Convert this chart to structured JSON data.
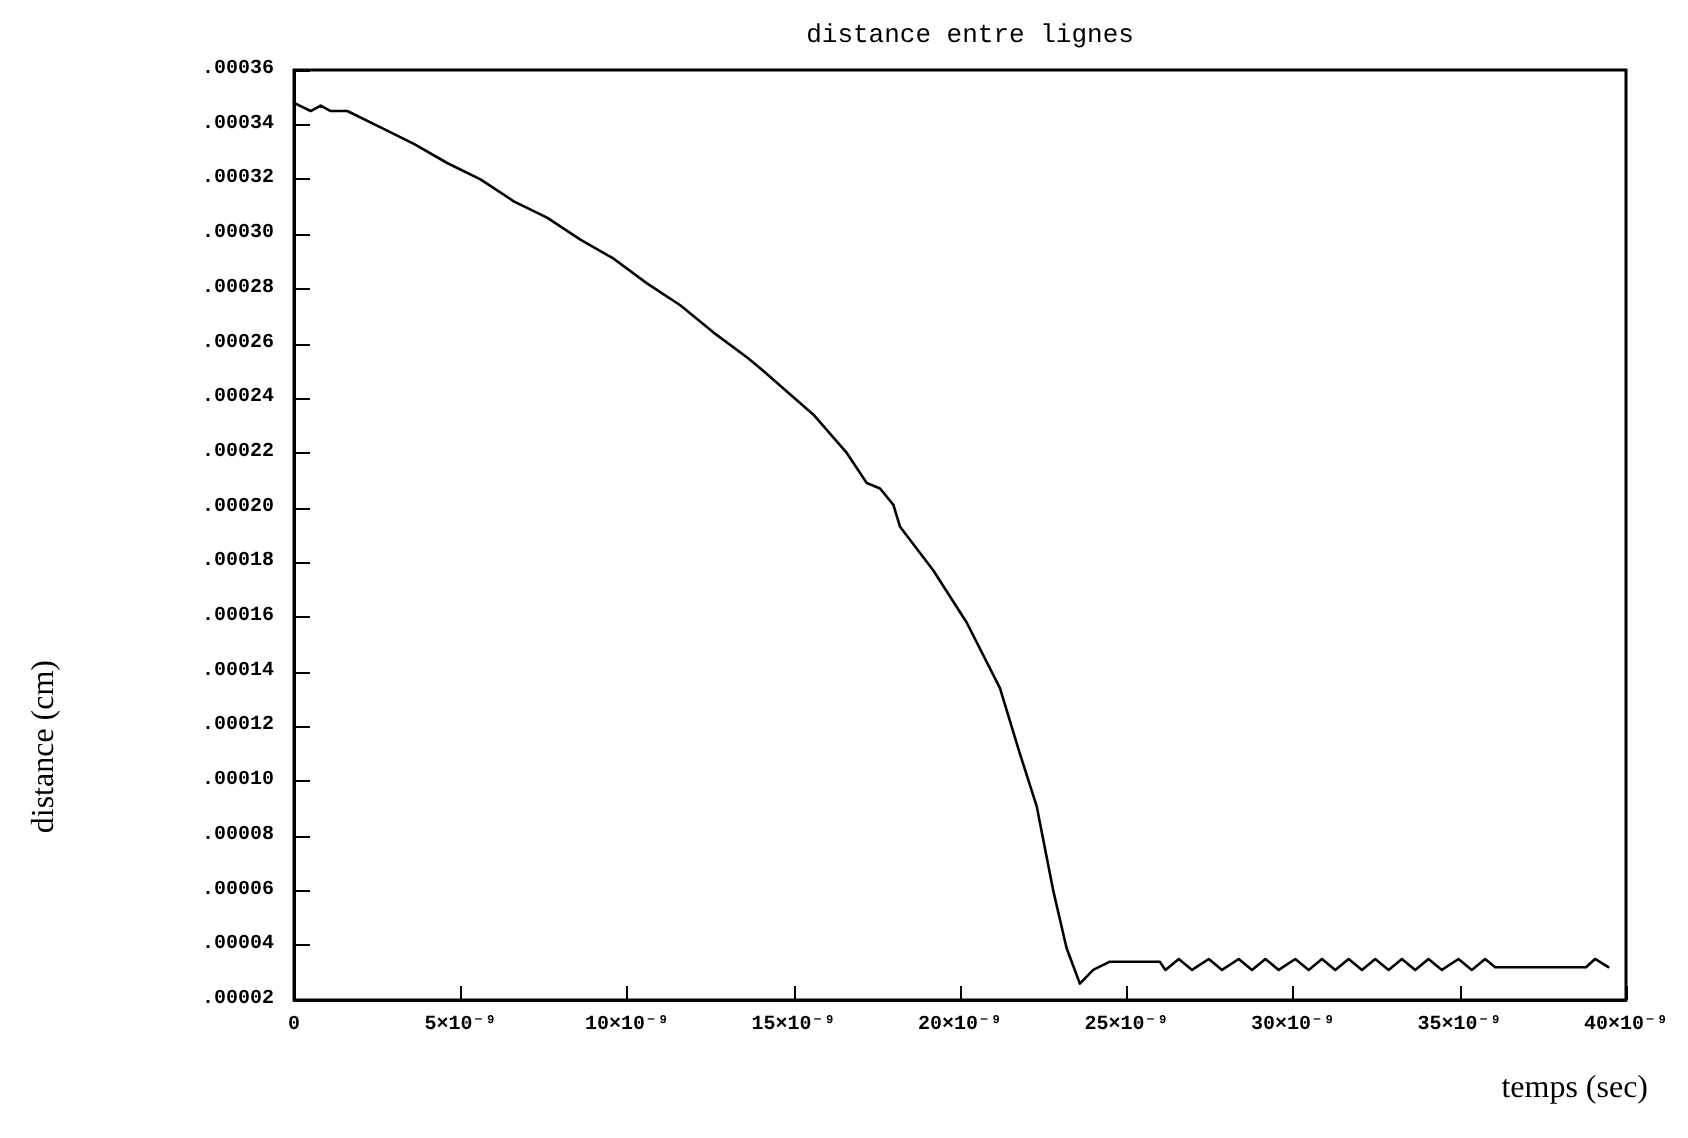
{
  "chart_data": {
    "type": "line",
    "title": "distance entre lignes",
    "xlabel": "temps (sec)",
    "ylabel": "distance (cm)",
    "x": [
      0,
      5e-10,
      8e-10,
      1.1e-09,
      1.6e-09,
      2.6e-09,
      3.6e-09,
      4.6e-09,
      5.6e-09,
      6.6e-09,
      7.6e-09,
      8.6e-09,
      9.6e-09,
      1.06e-08,
      1.16e-08,
      1.26e-08,
      1.36e-08,
      1.4e-08,
      1.56e-08,
      1.66e-08,
      1.72e-08,
      1.76e-08,
      1.8e-08,
      1.82e-08,
      1.92e-08,
      2.02e-08,
      2.12e-08,
      2.18e-08,
      2.23e-08,
      2.28e-08,
      2.32e-08,
      2.36e-08,
      2.4e-08,
      2.45e-08,
      2.6e-08,
      2.617e-08,
      2.657e-08,
      2.697e-08,
      2.747e-08,
      2.787e-08,
      2.837e-08,
      2.877e-08,
      2.917e-08,
      2.957e-08,
      3.007e-08,
      3.047e-08,
      3.087e-08,
      3.127e-08,
      3.167e-08,
      3.207e-08,
      3.247e-08,
      3.287e-08,
      3.327e-08,
      3.367e-08,
      3.407e-08,
      3.447e-08,
      3.497e-08,
      3.537e-08,
      3.577e-08,
      3.607e-08,
      3.88e-08,
      3.907e-08,
      3.947e-08
    ],
    "series": [
      {
        "color": "#000000",
        "values": [
          0.000348,
          0.000345,
          0.000347,
          0.000345,
          0.000345,
          0.000339,
          0.000333,
          0.000326,
          0.00032,
          0.000312,
          0.000306,
          0.000298,
          0.000291,
          0.000282,
          0.000274,
          0.000264,
          0.000255,
          0.000251,
          0.000234,
          0.00022,
          0.000209,
          0.000207,
          0.000201,
          0.000193,
          0.000177,
          0.000158,
          0.000134,
          0.00011,
          9.1e-05,
          6e-05,
          3.9e-05,
          2.6e-05,
          3.1e-05,
          3.4e-05,
          3.4e-05,
          3.1e-05,
          3.5e-05,
          3.1e-05,
          3.5e-05,
          3.1e-05,
          3.5e-05,
          3.1e-05,
          3.5e-05,
          3.1e-05,
          3.5e-05,
          3.1e-05,
          3.5e-05,
          3.1e-05,
          3.5e-05,
          3.1e-05,
          3.5e-05,
          3.1e-05,
          3.5e-05,
          3.1e-05,
          3.5e-05,
          3.1e-05,
          3.5e-05,
          3.1e-05,
          3.5e-05,
          3.2e-05,
          3.2e-05,
          3.5e-05,
          3.2e-05
        ]
      }
    ],
    "xlim": [
      0,
      4e-08
    ],
    "xticks": [
      0,
      {
        "value": 5e-09,
        "label": "5×10⁻⁹"
      },
      {
        "value": 1e-08,
        "label": "10×10⁻⁹"
      },
      {
        "value": 1.5e-08,
        "label": "15×10⁻⁹"
      },
      {
        "value": 2e-08,
        "label": "20×10⁻⁹"
      },
      {
        "value": 2.5e-08,
        "label": "25×10⁻⁹"
      },
      {
        "value": 3e-08,
        "label": "30×10⁻⁹"
      },
      {
        "value": 3.5e-08,
        "label": "35×10⁻⁹"
      },
      {
        "value": 4e-08,
        "label": "40×10⁻⁹"
      }
    ],
    "ylim": [
      2e-05,
      0.00036
    ],
    "yticks": [
      {
        "value": 2e-05,
        "label": ".00002"
      },
      {
        "value": 4e-05,
        "label": ".00004"
      },
      {
        "value": 6e-05,
        "label": ".00006"
      },
      {
        "value": 8e-05,
        "label": ".00008"
      },
      {
        "value": 0.0001,
        "label": ".00010"
      },
      {
        "value": 0.00012,
        "label": ".00012"
      },
      {
        "value": 0.00014,
        "label": ".00014"
      },
      {
        "value": 0.00016,
        "label": ".00016"
      },
      {
        "value": 0.00018,
        "label": ".00018"
      },
      {
        "value": 0.0002,
        "label": ".00020"
      },
      {
        "value": 0.00022,
        "label": ".00022"
      },
      {
        "value": 0.00024,
        "label": ".00024"
      },
      {
        "value": 0.00026,
        "label": ".00026"
      },
      {
        "value": 0.00028,
        "label": ".00028"
      },
      {
        "value": 0.0003,
        "label": ".00030"
      },
      {
        "value": 0.00032,
        "label": ".00032"
      },
      {
        "value": 0.00034,
        "label": ".00034"
      },
      {
        "value": 0.00036,
        "label": ".00036"
      }
    ],
    "grid": false,
    "marker": "none",
    "line_style": "solid"
  }
}
